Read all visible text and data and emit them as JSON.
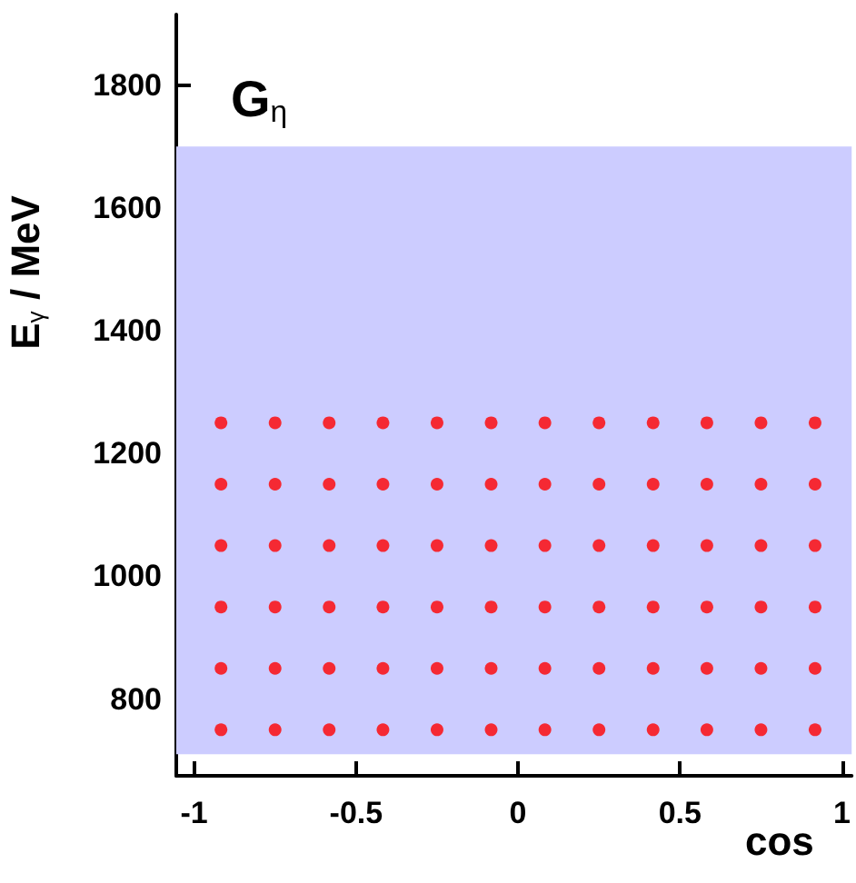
{
  "chart_data": {
    "type": "scatter",
    "title": "G$_{η}$",
    "xlabel": "cos",
    "ylabel": "E$_{γ}$ / MeV",
    "xlim": [
      -1.055,
      1.03
    ],
    "xticks": [
      -1,
      -0.5,
      0,
      0.5,
      1
    ],
    "ylim": [
      675,
      1915
    ],
    "yticks": [
      800,
      1000,
      1200,
      1400,
      1600,
      1800
    ],
    "grid": false,
    "marker": "circle",
    "bands": [
      {
        "axis": "y",
        "from": 710,
        "to": 1700,
        "color": "#ccccff"
      }
    ],
    "series": [
      {
        "color": "#ff0000",
        "x": [
          -0.917,
          -0.75,
          -0.583,
          -0.417,
          -0.25,
          -0.083,
          0.083,
          0.25,
          0.417,
          0.583,
          0.75,
          0.917,
          -0.917,
          -0.75,
          -0.583,
          -0.417,
          -0.25,
          -0.083,
          0.083,
          0.25,
          0.417,
          0.583,
          0.75,
          0.917,
          -0.917,
          -0.75,
          -0.583,
          -0.417,
          -0.25,
          -0.083,
          0.083,
          0.25,
          0.417,
          0.583,
          0.75,
          0.917,
          -0.917,
          -0.75,
          -0.583,
          -0.417,
          -0.25,
          -0.083,
          0.083,
          0.25,
          0.417,
          0.583,
          0.75,
          0.917,
          -0.917,
          -0.75,
          -0.583,
          -0.417,
          -0.25,
          -0.083,
          0.083,
          0.25,
          0.417,
          0.583,
          0.75,
          0.917,
          -0.917,
          -0.75,
          -0.583,
          -0.417,
          -0.25,
          -0.083,
          0.083,
          0.25,
          0.417,
          0.583,
          0.75,
          0.917
        ],
        "values": [
          1250,
          1250,
          1250,
          1250,
          1250,
          1250,
          1250,
          1250,
          1250,
          1250,
          1250,
          1250,
          1150,
          1150,
          1150,
          1150,
          1150,
          1150,
          1150,
          1150,
          1150,
          1150,
          1150,
          1150,
          1050,
          1050,
          1050,
          1050,
          1050,
          1050,
          1050,
          1050,
          1050,
          1050,
          1050,
          1050,
          950,
          950,
          950,
          950,
          950,
          950,
          950,
          950,
          950,
          950,
          950,
          950,
          850,
          850,
          850,
          850,
          850,
          850,
          850,
          850,
          850,
          850,
          850,
          850,
          750,
          750,
          750,
          750,
          750,
          750,
          750,
          750,
          750,
          750,
          750,
          750
        ]
      }
    ]
  }
}
